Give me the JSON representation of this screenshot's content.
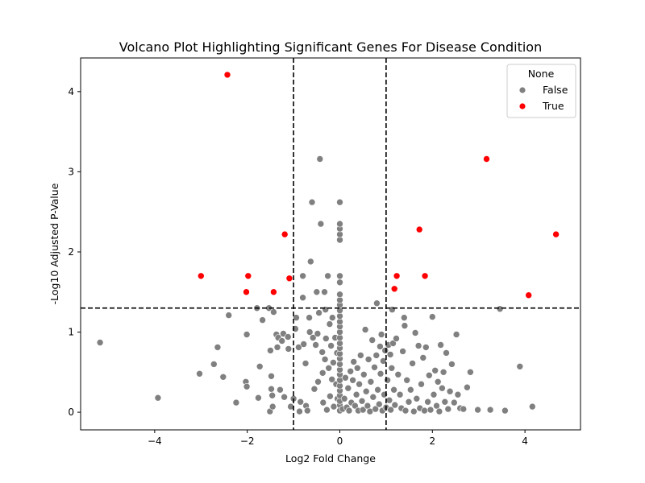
{
  "chart_data": {
    "type": "scatter",
    "title": "Volcano Plot Highlighting Significant Genes For Disease Condition",
    "xlabel": "Log2 Fold Change",
    "ylabel": "-Log10 Adjusted P-Value",
    "xlim": [
      -5.6,
      5.2
    ],
    "ylim": [
      -0.22,
      4.42
    ],
    "x_ticks": [
      -4,
      -2,
      0,
      2,
      4
    ],
    "y_ticks": [
      0,
      1,
      2,
      3,
      4
    ],
    "grid": false,
    "thresholds": {
      "fold_change": [
        -1,
        1
      ],
      "neg_log10_p": 1.3
    },
    "legend": {
      "title": "None",
      "placement": "top-right",
      "entries": [
        {
          "label": "False",
          "color": "#808080"
        },
        {
          "label": "True",
          "color": "#ff0000"
        }
      ]
    },
    "series": [
      {
        "name": "False",
        "color": "#808080",
        "points": [
          [
            -5.18,
            0.87
          ],
          [
            -3.93,
            0.18
          ],
          [
            -3.03,
            0.48
          ],
          [
            -2.64,
            0.81
          ],
          [
            -2.72,
            0.6
          ],
          [
            -2.52,
            0.44
          ],
          [
            -2.4,
            1.21
          ],
          [
            -2.24,
            0.12
          ],
          [
            -2.01,
            0.97
          ],
          [
            -2.03,
            0.38
          ],
          [
            -2.01,
            0.32
          ],
          [
            -1.79,
            1.3
          ],
          [
            -1.73,
            0.57
          ],
          [
            -1.76,
            0.18
          ],
          [
            -1.67,
            1.15
          ],
          [
            -1.53,
            1.3
          ],
          [
            -1.5,
            0.77
          ],
          [
            -1.48,
            0.45
          ],
          [
            -1.48,
            0.29
          ],
          [
            -1.43,
            1.25
          ],
          [
            -1.46,
            0.21
          ],
          [
            -1.51,
            0.01
          ],
          [
            -1.45,
            0.07
          ],
          [
            -1.37,
            0.97
          ],
          [
            -1.35,
            0.81
          ],
          [
            -1.33,
            0.93
          ],
          [
            -1.29,
            0.28
          ],
          [
            -1.25,
            0.89
          ],
          [
            -1.22,
            0.98
          ],
          [
            -1.2,
            0.19
          ],
          [
            -1.12,
            0.94
          ],
          [
            -1.11,
            0.79
          ],
          [
            -1.06,
            0.07
          ],
          [
            -1.0,
            0.17
          ],
          [
            -0.96,
            1.04
          ],
          [
            -0.94,
            1.18
          ],
          [
            -0.89,
            0.81
          ],
          [
            -0.85,
            0.13
          ],
          [
            -0.87,
            0.01
          ],
          [
            -0.8,
            1.7
          ],
          [
            -0.8,
            1.43
          ],
          [
            -0.78,
            0.85
          ],
          [
            -0.74,
            0.61
          ],
          [
            -0.73,
            0.08
          ],
          [
            -0.7,
            0.02
          ],
          [
            -0.66,
            1.18
          ],
          [
            -0.65,
            1.0
          ],
          [
            -0.63,
            1.88
          ],
          [
            -0.6,
            2.62
          ],
          [
            -0.58,
            0.93
          ],
          [
            -0.55,
            0.29
          ],
          [
            -0.52,
            0.84
          ],
          [
            -0.5,
            1.5
          ],
          [
            -0.48,
            0.98
          ],
          [
            -0.47,
            0.38
          ],
          [
            -0.45,
            1.24
          ],
          [
            -0.43,
            3.16
          ],
          [
            -0.41,
            2.35
          ],
          [
            -0.38,
            0.75
          ],
          [
            -0.37,
            0.49
          ],
          [
            -0.36,
            0.12
          ],
          [
            -0.33,
            1.5
          ],
          [
            -0.32,
            0.66
          ],
          [
            -0.31,
            1.28
          ],
          [
            -0.3,
            0.92
          ],
          [
            -0.28,
            0.03
          ],
          [
            -0.26,
            1.7
          ],
          [
            -0.24,
            0.55
          ],
          [
            -0.22,
            1.1
          ],
          [
            -0.21,
            0.2
          ],
          [
            -0.19,
            0.83
          ],
          [
            -0.17,
            0.41
          ],
          [
            -0.16,
            1.18
          ],
          [
            -0.14,
            0.62
          ],
          [
            -0.13,
            0.07
          ],
          [
            -0.1,
            0.93
          ],
          [
            -0.08,
            0.35
          ],
          [
            -0.06,
            0.74
          ],
          [
            -0.05,
            0.17
          ],
          [
            0.0,
            0.02
          ],
          [
            0.0,
            0.09
          ],
          [
            0.0,
            0.14
          ],
          [
            0.0,
            0.21
          ],
          [
            0.0,
            0.27
          ],
          [
            0.0,
            0.33
          ],
          [
            0.0,
            0.4
          ],
          [
            0.0,
            0.47
          ],
          [
            0.0,
            0.53
          ],
          [
            0.0,
            0.6
          ],
          [
            0.0,
            0.67
          ],
          [
            0.0,
            0.73
          ],
          [
            0.0,
            0.8
          ],
          [
            0.0,
            0.86
          ],
          [
            0.0,
            0.93
          ],
          [
            0.0,
            1.0
          ],
          [
            0.0,
            1.07
          ],
          [
            0.0,
            1.13
          ],
          [
            0.0,
            1.2
          ],
          [
            0.0,
            1.27
          ],
          [
            0.0,
            1.34
          ],
          [
            0.0,
            1.4
          ],
          [
            0.0,
            1.47
          ],
          [
            0.0,
            1.62
          ],
          [
            0.0,
            1.7
          ],
          [
            0.0,
            2.15
          ],
          [
            0.0,
            2.22
          ],
          [
            0.0,
            2.29
          ],
          [
            0.0,
            2.35
          ],
          [
            0.0,
            2.62
          ],
          [
            0.06,
            0.04
          ],
          [
            0.1,
            0.17
          ],
          [
            0.12,
            0.43
          ],
          [
            0.15,
            0.06
          ],
          [
            0.18,
            0.3
          ],
          [
            0.2,
            0.02
          ],
          [
            0.23,
            0.51
          ],
          [
            0.25,
            0.12
          ],
          [
            0.28,
            0.4
          ],
          [
            0.3,
            0.63
          ],
          [
            0.33,
            0.08
          ],
          [
            0.36,
            0.22
          ],
          [
            0.38,
            0.55
          ],
          [
            0.4,
            0.02
          ],
          [
            0.42,
            0.35
          ],
          [
            0.45,
            0.71
          ],
          [
            0.48,
            0.14
          ],
          [
            0.5,
            0.03
          ],
          [
            0.52,
            0.47
          ],
          [
            0.55,
            1.03
          ],
          [
            0.57,
            0.26
          ],
          [
            0.6,
            0.08
          ],
          [
            0.62,
            0.66
          ],
          [
            0.65,
            0.01
          ],
          [
            0.67,
            0.38
          ],
          [
            0.7,
            0.9
          ],
          [
            0.72,
            0.19
          ],
          [
            0.75,
            0.56
          ],
          [
            0.77,
            0.04
          ],
          [
            0.79,
            0.71
          ],
          [
            0.8,
            1.36
          ],
          [
            0.82,
            0.28
          ],
          [
            0.85,
            0.1
          ],
          [
            0.87,
            0.82
          ],
          [
            0.88,
            0.48
          ],
          [
            0.9,
            0.97
          ],
          [
            0.92,
            0.02
          ],
          [
            0.94,
            0.64
          ],
          [
            0.96,
            0.22
          ],
          [
            0.98,
            0.77
          ],
          [
            1.0,
            0.06
          ],
          [
            1.03,
            0.4
          ],
          [
            1.05,
            0.84
          ],
          [
            1.07,
            0.15
          ],
          [
            1.09,
            0.72
          ],
          [
            1.1,
            0.03
          ],
          [
            1.12,
            0.55
          ],
          [
            1.13,
            1.28
          ],
          [
            1.15,
            0.86
          ],
          [
            1.17,
            0.28
          ],
          [
            1.19,
            0.09
          ],
          [
            1.22,
            0.92
          ],
          [
            1.26,
            0.47
          ],
          [
            1.3,
            0.22
          ],
          [
            1.33,
            0.05
          ],
          [
            1.36,
            0.76
          ],
          [
            1.39,
            1.18
          ],
          [
            1.4,
            1.08
          ],
          [
            1.42,
            0.02
          ],
          [
            1.45,
            0.4
          ],
          [
            1.49,
            0.13
          ],
          [
            1.53,
            0.28
          ],
          [
            1.57,
            0.61
          ],
          [
            1.6,
            0.01
          ],
          [
            1.63,
            0.99
          ],
          [
            1.66,
            0.17
          ],
          [
            1.7,
            0.83
          ],
          [
            1.73,
            0.05
          ],
          [
            1.76,
            0.35
          ],
          [
            1.8,
            0.68
          ],
          [
            1.83,
            0.02
          ],
          [
            1.86,
            0.81
          ],
          [
            1.9,
            0.13
          ],
          [
            1.93,
            0.46
          ],
          [
            1.96,
            0.03
          ],
          [
            2.0,
            1.19
          ],
          [
            2.03,
            0.22
          ],
          [
            2.06,
            0.52
          ],
          [
            2.09,
            0.08
          ],
          [
            2.12,
            0.38
          ],
          [
            2.15,
            0.01
          ],
          [
            2.18,
            0.84
          ],
          [
            2.21,
            0.3
          ],
          [
            2.24,
            0.5
          ],
          [
            2.27,
            0.13
          ],
          [
            2.3,
            0.74
          ],
          [
            2.34,
            0.04
          ],
          [
            2.38,
            0.26
          ],
          [
            2.42,
            0.6
          ],
          [
            2.47,
            0.12
          ],
          [
            2.52,
            0.97
          ],
          [
            2.55,
            0.22
          ],
          [
            2.6,
            0.05
          ],
          [
            2.67,
            0.04
          ],
          [
            2.75,
            0.31
          ],
          [
            2.82,
            0.5
          ],
          [
            2.98,
            0.03
          ],
          [
            3.25,
            0.03
          ],
          [
            3.46,
            1.29
          ],
          [
            3.57,
            0.02
          ],
          [
            3.89,
            0.57
          ],
          [
            4.16,
            0.07
          ]
        ]
      },
      {
        "name": "True",
        "color": "#ff0000",
        "points": [
          [
            -2.43,
            4.21
          ],
          [
            -3.0,
            1.7
          ],
          [
            -1.98,
            1.7
          ],
          [
            -2.02,
            1.5
          ],
          [
            -1.43,
            1.5
          ],
          [
            -1.19,
            2.22
          ],
          [
            -1.09,
            1.67
          ],
          [
            1.18,
            1.54
          ],
          [
            1.23,
            1.7
          ],
          [
            1.72,
            2.28
          ],
          [
            1.84,
            1.7
          ],
          [
            3.17,
            3.16
          ],
          [
            4.08,
            1.46
          ],
          [
            4.67,
            2.22
          ]
        ]
      }
    ]
  }
}
